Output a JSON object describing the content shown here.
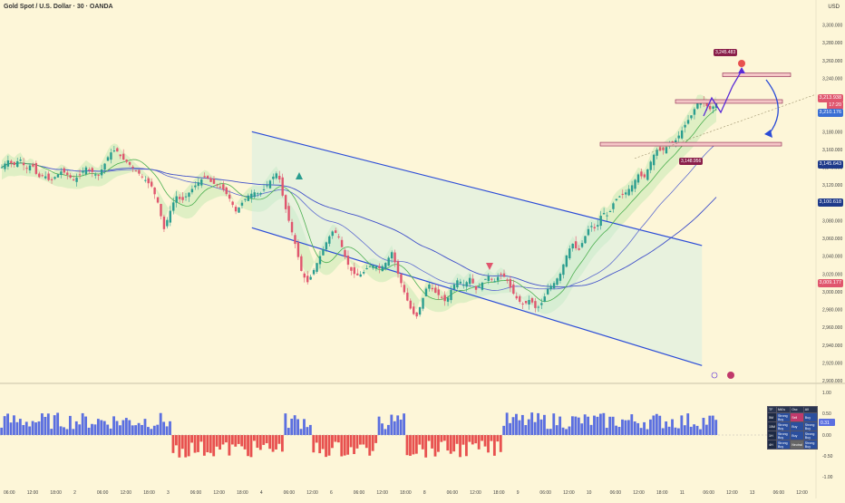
{
  "header": {
    "title": "Gold Spot / U.S. Dollar · 30 · OANDA",
    "currency": "USD"
  },
  "price_tags": [
    {
      "value": "3,213.938",
      "color": "#e0566e"
    },
    {
      "value": "17:20",
      "color": "#e0566e"
    },
    {
      "value": "3,210.176",
      "color": "#3b6fd4"
    },
    {
      "value": "3,145.643",
      "color": "#1e3a8a"
    },
    {
      "value": "3,100.618",
      "color": "#1e3a8a"
    },
    {
      "value": "3,009.177",
      "color": "#e0566e"
    }
  ],
  "flag_tags": [
    {
      "value": "3,245.483"
    },
    {
      "value": "3,148.956"
    }
  ],
  "colors": {
    "bull": "#2a9d8f",
    "bear": "#e0566e",
    "channel": "#2a4bd7",
    "cloud_up": "#a7e3a1",
    "cloud_dn": "#f4b5a3",
    "hist_up": "#5b6fe0",
    "hist_dn": "#e8514f"
  },
  "oscillator_labels": [
    "1.00",
    "0.50",
    "0.00",
    "-0.50",
    "-1.00"
  ],
  "oscillator_value": "0.31",
  "signal_table": {
    "headers": [
      "TF",
      "MA's",
      "Osc",
      "All"
    ],
    "rows": [
      [
        "5M",
        "Strong Buy",
        "Sell",
        "Buy"
      ],
      [
        "15M",
        "Strong Buy",
        "Buy",
        "Strong Buy"
      ],
      [
        "1H",
        "Strong Buy",
        "Buy",
        "Strong Buy"
      ],
      [
        "4H",
        "Strong Buy",
        "Neutral",
        "Strong Buy"
      ]
    ]
  },
  "chart_data": {
    "type": "candlestick",
    "title": "Gold Spot / U.S. Dollar · 30 · OANDA",
    "ylabel": "USD",
    "ylim": [
      2900,
      3320
    ],
    "y_ticks": [
      3300,
      3280,
      3260,
      3240,
      3220,
      3200,
      3180,
      3160,
      3140,
      3120,
      3100,
      3080,
      3060,
      3040,
      3020,
      3000,
      2980,
      2960,
      2940,
      2920,
      2900
    ],
    "x_ticks": [
      "06:00",
      "12:00",
      "18:00",
      "2",
      "06:00",
      "12:00",
      "18:00",
      "3",
      "06:00",
      "12:00",
      "18:00",
      "4",
      "06:00",
      "12:00",
      "6",
      "06:00",
      "12:00",
      "18:00",
      "8",
      "06:00",
      "12:00",
      "18:00",
      "9",
      "06:00",
      "12:00",
      "10",
      "06:00",
      "12:00",
      "18:00",
      "11",
      "06:00",
      "12:00",
      "13",
      "06:00",
      "12:00"
    ],
    "path": [
      3140,
      3148,
      3142,
      3150,
      3138,
      3144,
      3128,
      3132,
      3124,
      3130,
      3136,
      3131,
      3125,
      3132,
      3140,
      3135,
      3130,
      3142,
      3156,
      3160,
      3150,
      3145,
      3138,
      3132,
      3125,
      3118,
      3100,
      3070,
      3090,
      3108,
      3102,
      3110,
      3118,
      3125,
      3130,
      3122,
      3120,
      3114,
      3104,
      3090,
      3100,
      3108,
      3112,
      3110,
      3118,
      3128,
      3135,
      3100,
      3075,
      3050,
      3020,
      3010,
      3025,
      3040,
      3055,
      3068,
      3065,
      3042,
      3025,
      3018,
      3020,
      3028,
      3030,
      3026,
      3033,
      3045,
      3020,
      3000,
      2982,
      2970,
      2990,
      3010,
      3000,
      2995,
      2988,
      3005,
      3014,
      3007,
      3016,
      3002,
      3010,
      3018,
      3011,
      3020,
      3015,
      3000,
      2990,
      2985,
      2992,
      2980,
      2988,
      3004,
      3010,
      3020,
      3040,
      3055,
      3045,
      3060,
      3075,
      3070,
      3090,
      3085,
      3102,
      3108,
      3112,
      3120,
      3132,
      3128,
      3145,
      3160,
      3158,
      3165,
      3168,
      3178,
      3190,
      3200,
      3215,
      3212,
      3205,
      3212
    ],
    "channel": {
      "upper": [
        [
          3350,
          3180
        ],
        [
          3980,
          3052
        ]
      ],
      "lower": [
        [
          3350,
          3072
        ],
        [
          3980,
          2917
        ]
      ]
    },
    "zones": [
      {
        "y": 3244
      },
      {
        "y": 3214
      },
      {
        "y": 3166
      }
    ],
    "annotations": [
      "3,245.483",
      "3,148.956"
    ]
  }
}
